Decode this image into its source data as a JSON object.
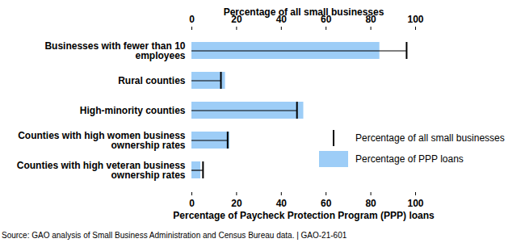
{
  "chart_data": {
    "type": "bar",
    "orientation": "horizontal",
    "xlabel_top": "Percentage of all small businesses",
    "xlabel": "Percentage of Paycheck Protection Program (PPP) loans",
    "source": "Source: GAO analysis of Small Business Administration and Census Bureau data. | GAO-21-601",
    "categories": [
      "Businesses with fewer than 10 employees",
      "Rural counties",
      "High-minority counties",
      "Counties with high women business ownership rates",
      "Counties with high veteran business ownership rates"
    ],
    "series": [
      {
        "name": "Percentage of all small businesses",
        "type": "marker",
        "marker": "tick",
        "color": "#000000",
        "values": [
          96,
          13,
          47,
          16,
          5
        ]
      },
      {
        "name": "Percentage of PPP loans",
        "type": "bar",
        "color": "#9dcdf7",
        "values": [
          84,
          15,
          50,
          17,
          4
        ]
      }
    ],
    "xlim": [
      0,
      100
    ],
    "xticks": [
      0,
      20,
      40,
      60,
      80,
      100
    ],
    "grid": false,
    "legend": "right"
  }
}
